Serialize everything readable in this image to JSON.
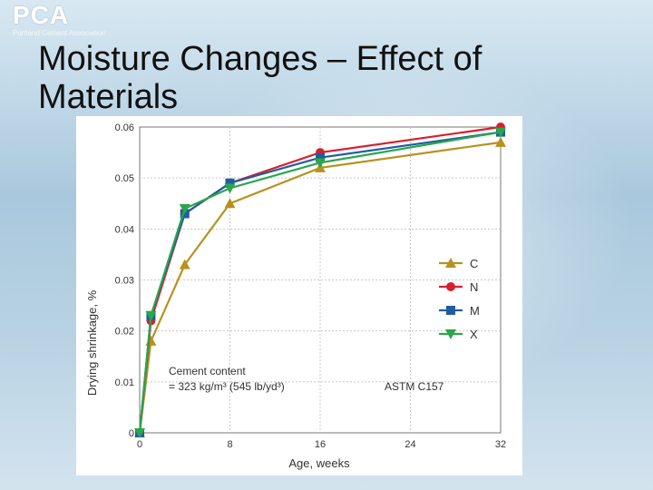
{
  "slide": {
    "title": "Moisture Changes – Effect of Materials"
  },
  "logo": {
    "mark": "PCA",
    "subtitle": "Portland Cement Association"
  },
  "colors": {
    "C": "#b8921f",
    "N": "#d6202e",
    "M": "#1f5e9e",
    "X": "#2aa64c"
  },
  "chart_data": {
    "type": "line",
    "xlabel": "Age, weeks",
    "ylabel": "Drying shrinkage, %",
    "xlim": [
      0,
      32
    ],
    "ylim": [
      0,
      0.06
    ],
    "xticks": [
      0,
      8,
      16,
      24,
      32
    ],
    "xtick_labels": [
      "0",
      "8",
      "16",
      "24",
      "32"
    ],
    "yticks": [
      0,
      0.01,
      0.02,
      0.03,
      0.04,
      0.05,
      0.06
    ],
    "ytick_labels": [
      "0",
      "0.01",
      "0.02",
      "0.03",
      "0.04",
      "0.05",
      "0.06"
    ],
    "grid": true,
    "legend_position": "right",
    "series": [
      {
        "name": "C",
        "marker": "triangle-up",
        "x": [
          0,
          1,
          4,
          8,
          16,
          32
        ],
        "y": [
          0,
          0.018,
          0.033,
          0.045,
          0.052,
          0.057
        ]
      },
      {
        "name": "N",
        "marker": "circle",
        "x": [
          0,
          1,
          4,
          8,
          16,
          32
        ],
        "y": [
          0,
          0.022,
          0.043,
          0.049,
          0.055,
          0.06
        ]
      },
      {
        "name": "M",
        "marker": "square",
        "x": [
          0,
          1,
          4,
          8,
          16,
          32
        ],
        "y": [
          0,
          0.023,
          0.043,
          0.049,
          0.054,
          0.059
        ]
      },
      {
        "name": "X",
        "marker": "triangle-down",
        "x": [
          0,
          1,
          4,
          8,
          16,
          32
        ],
        "y": [
          0,
          0.023,
          0.044,
          0.048,
          0.053,
          0.059
        ]
      }
    ],
    "annotations": {
      "cement_line1": "Cement content",
      "cement_line2": "= 323 kg/m³ (545 lb/yd³)",
      "standard": "ASTM C157"
    }
  }
}
